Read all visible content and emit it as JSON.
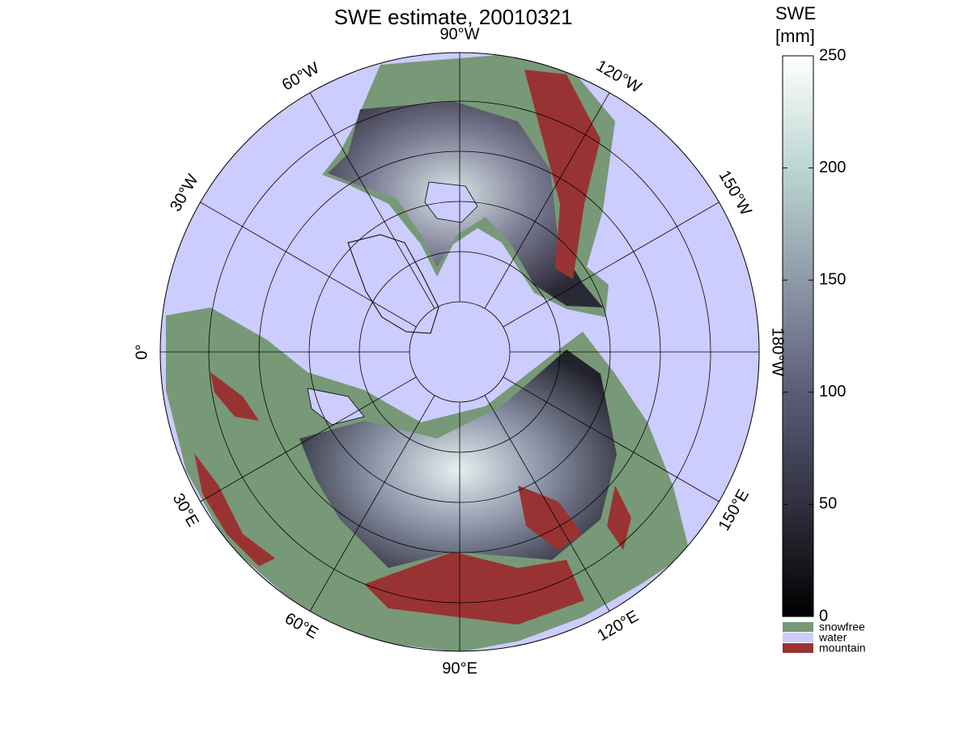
{
  "map": {
    "title": "SWE estimate, 20010321",
    "meridian_labels": [
      "0°",
      "30°W",
      "60°W",
      "90°W",
      "120°W",
      "150°W",
      "180°W",
      "150°E",
      "120°E",
      "90°E",
      "60°E",
      "30°E"
    ],
    "colorbar": {
      "title_lines": [
        "SWE",
        "[mm]"
      ],
      "range": [
        0,
        250
      ],
      "ticks": [
        0,
        50,
        100,
        150,
        200,
        250
      ],
      "colormap": [
        "#000000",
        "#30303f",
        "#5c5c78",
        "#8e9aa8",
        "#bcd6d2",
        "#ffffff"
      ]
    },
    "legend": [
      {
        "label": "snowfree",
        "color": "#779977"
      },
      {
        "label": "water",
        "color": "#ccccff"
      },
      {
        "label": "mountain",
        "color": "#993333"
      }
    ]
  }
}
